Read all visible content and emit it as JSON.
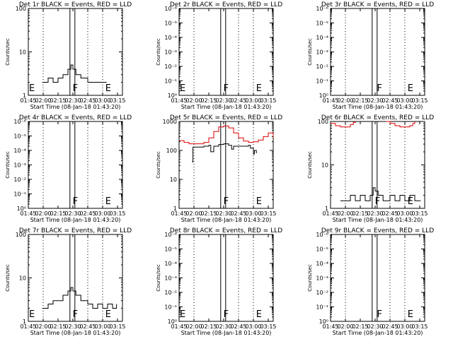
{
  "chart_data": [
    {
      "type": "line",
      "title": "Det 1r BLACK = Events, RED = LLD",
      "xlabel": "Start Time (08-Jan-18 01:43:20)",
      "ylabel": "Counts/sec",
      "yscale": "log",
      "ylim": [
        1,
        100
      ],
      "ytick_labels": [
        "1",
        "10",
        "100"
      ],
      "xlim": [
        "01:45",
        "03:20"
      ],
      "xtick_labels": [
        "01:45",
        "02:00",
        "02:15",
        "02:30",
        "02:45",
        "03:00",
        "03:15"
      ],
      "markers": [
        {
          "label": "E",
          "x": "01:45"
        },
        {
          "label": "F",
          "x": "02:29"
        },
        {
          "label": "E",
          "x": "03:02"
        }
      ],
      "vertical_lines_solid": [
        "02:27",
        "02:32"
      ],
      "vertical_lines_dotted": [
        "02:00",
        "02:45",
        "03:00"
      ],
      "series": [
        {
          "color": "#000000",
          "x": [
            "01:59",
            "02:05",
            "02:10",
            "02:15",
            "02:20",
            "02:25",
            "02:28",
            "02:30",
            "02:33",
            "02:38",
            "02:45",
            "02:55",
            "03:00",
            "03:04"
          ],
          "values": [
            2,
            2.5,
            2,
            2.5,
            3,
            4,
            5,
            4,
            3,
            2.5,
            2,
            2,
            2,
            2
          ]
        }
      ]
    },
    {
      "type": "line",
      "title": "Det 2r BLACK = Events, RED = LLD",
      "xlabel": "Start Time (08-Jan-18 01:43:20)",
      "ylabel": "Counts/sec",
      "yscale": "log",
      "ylim": [
        1,
        1000000
      ],
      "ytick_labels": [
        "10⁰",
        "10⁻¹",
        "10⁻²",
        "10⁻³",
        "10⁻⁴",
        "10⁻⁵",
        "10⁻⁶"
      ],
      "xlim": [
        "01:45",
        "03:20"
      ],
      "xtick_labels": [
        "01:45",
        "02:00",
        "02:15",
        "02:30",
        "02:45",
        "03:00",
        "03:15"
      ],
      "markers": [
        {
          "label": "E",
          "x": "01:45"
        },
        {
          "label": "F",
          "x": "02:29"
        },
        {
          "label": "E",
          "x": "03:02"
        }
      ],
      "vertical_lines_solid": [
        "02:27",
        "02:32"
      ],
      "vertical_lines_dotted": [
        "02:00",
        "02:45",
        "03:00"
      ],
      "series": []
    },
    {
      "type": "line",
      "title": "Det 3r BLACK = Events, RED = LLD",
      "xlabel": "Start Time (08-Jan-18 01:43:20)",
      "ylabel": "Counts/sec",
      "yscale": "log",
      "ylim": [
        1,
        1000000
      ],
      "ytick_labels": [
        "10⁰",
        "10⁻¹",
        "10⁻²",
        "10⁻³",
        "10⁻⁴",
        "10⁻⁵",
        "10⁻⁶"
      ],
      "xlim": [
        "01:45",
        "03:20"
      ],
      "xtick_labels": [
        "01:45",
        "02:00",
        "02:15",
        "02:30",
        "02:45",
        "03:00",
        "03:15"
      ],
      "markers": [
        {
          "label": "F",
          "x": "02:31"
        },
        {
          "label": "E",
          "x": "03:02"
        }
      ],
      "vertical_lines_solid": [
        "02:27",
        "02:32"
      ],
      "vertical_lines_dotted": [
        "02:00",
        "02:45",
        "03:00"
      ],
      "series": []
    },
    {
      "type": "line",
      "title": "Det 4r BLACK = Events, RED = LLD",
      "xlabel": "Start Time (08-Jan-18 01:43:20)",
      "ylabel": "Counts/sec",
      "yscale": "log",
      "ylim": [
        1,
        1000000
      ],
      "ytick_labels": [
        "10⁰",
        "10⁻¹",
        "10⁻²",
        "10⁻³",
        "10⁻⁴",
        "10⁻⁵",
        "10⁻⁶"
      ],
      "xlim": [
        "01:45",
        "03:20"
      ],
      "xtick_labels": [
        "01:45",
        "02:00",
        "02:15",
        "02:30",
        "02:45",
        "03:00",
        "03:15"
      ],
      "markers": [
        {
          "label": "F",
          "x": "02:29"
        },
        {
          "label": "E",
          "x": "03:02"
        }
      ],
      "vertical_lines_solid": [
        "02:27",
        "02:32"
      ],
      "vertical_lines_dotted": [
        "02:00",
        "02:45",
        "03:00"
      ],
      "series": []
    },
    {
      "type": "line",
      "title": "Det 5r BLACK = Events, RED = LLD",
      "xlabel": "Start Time (08-Jan-18 01:43:20)",
      "ylabel": "Counts/sec",
      "yscale": "log",
      "ylim": [
        1,
        1000
      ],
      "ytick_labels": [
        "1",
        "10",
        "100",
        "1000"
      ],
      "xlim": [
        "01:45",
        "03:20"
      ],
      "xtick_labels": [
        "01:45",
        "02:00",
        "02:15",
        "02:30",
        "02:45",
        "03:00",
        "03:15"
      ],
      "markers": [
        {
          "label": "F",
          "x": "02:29"
        },
        {
          "label": "E",
          "x": "03:02"
        }
      ],
      "vertical_lines_solid": [
        "02:27",
        "02:32"
      ],
      "vertical_lines_dotted": [
        "02:00",
        "02:45",
        "03:00"
      ],
      "series": [
        {
          "color": "#000000",
          "x": [
            "01:58",
            "01:59",
            "02:05",
            "02:10",
            "02:15",
            "02:17",
            "02:20",
            "02:25",
            "02:30",
            "02:35",
            "02:38",
            "02:40",
            "02:45",
            "02:50",
            "02:55",
            "02:57",
            "03:00",
            "03:01",
            "03:03"
          ],
          "values": [
            40,
            130,
            130,
            140,
            150,
            90,
            140,
            160,
            170,
            150,
            110,
            140,
            140,
            140,
            150,
            120,
            75,
            100,
            80
          ]
        },
        {
          "color": "#dd0000",
          "x": [
            "01:45",
            "01:50",
            "01:55",
            "02:00",
            "02:05",
            "02:10",
            "02:15",
            "02:20",
            "02:25",
            "02:30",
            "02:35",
            "02:40",
            "02:45",
            "02:50",
            "02:55",
            "03:00",
            "03:05",
            "03:10",
            "03:15",
            "03:20"
          ],
          "values": [
            220,
            190,
            170,
            170,
            170,
            190,
            270,
            450,
            650,
            700,
            600,
            400,
            270,
            210,
            190,
            200,
            230,
            300,
            400,
            280
          ]
        }
      ]
    },
    {
      "type": "line",
      "title": "Det 6r BLACK = Events, RED = LLD",
      "xlabel": "Start Time (08-Jan-18 01:43:20)",
      "ylabel": "Counts/sec",
      "yscale": "log",
      "ylim": [
        1,
        100
      ],
      "ytick_labels": [
        "1",
        "10",
        "100"
      ],
      "xlim": [
        "01:45",
        "03:20"
      ],
      "xtick_labels": [
        "01:45",
        "02:00",
        "02:15",
        "02:30",
        "02:45",
        "03:00",
        "03:15"
      ],
      "markers": [
        {
          "label": "F",
          "x": "02:29"
        },
        {
          "label": "E",
          "x": "03:02"
        }
      ],
      "vertical_lines_solid": [
        "02:27",
        "02:32"
      ],
      "vertical_lines_dotted": [
        "02:00",
        "02:45",
        "03:00"
      ],
      "series": [
        {
          "color": "#000000",
          "x": [
            "01:55",
            "02:00",
            "02:05",
            "02:10",
            "02:15",
            "02:20",
            "02:25",
            "02:28",
            "02:30",
            "02:33",
            "02:38",
            "02:45",
            "02:50",
            "02:55",
            "03:00",
            "03:05",
            "03:10",
            "03:16"
          ],
          "values": [
            1.5,
            1.5,
            2,
            1.5,
            2,
            1.5,
            2,
            3,
            2.5,
            2,
            1.5,
            2,
            1.5,
            2,
            1.5,
            2,
            1.5,
            1.5
          ]
        },
        {
          "color": "#dd0000",
          "x": [
            "01:45",
            "01:50",
            "01:55",
            "02:00",
            "02:05",
            "02:08",
            "02:10"
          ],
          "values": [
            90,
            80,
            75,
            75,
            85,
            95,
            100
          ]
        },
        {
          "color": "#dd0000",
          "x": [
            "02:41",
            "02:45",
            "02:50",
            "02:55",
            "03:00",
            "03:05",
            "03:08",
            "03:10"
          ],
          "values": [
            100,
            90,
            80,
            75,
            75,
            80,
            90,
            100
          ]
        }
      ]
    },
    {
      "type": "line",
      "title": "Det 7r BLACK = Events, RED = LLD",
      "xlabel": "Start Time (08-Jan-18 01:43:20)",
      "ylabel": "Counts/sec",
      "yscale": "log",
      "ylim": [
        1,
        100
      ],
      "ytick_labels": [
        "1",
        "10",
        "100"
      ],
      "xlim": [
        "01:45",
        "03:20"
      ],
      "xtick_labels": [
        "01:45",
        "02:00",
        "02:15",
        "02:30",
        "02:45",
        "03:00",
        "03:15"
      ],
      "markers": [
        {
          "label": "E",
          "x": "01:45"
        },
        {
          "label": "F",
          "x": "02:29"
        },
        {
          "label": "E",
          "x": "03:02"
        }
      ],
      "vertical_lines_solid": [
        "02:27",
        "02:32"
      ],
      "vertical_lines_dotted": [
        "02:00",
        "02:45",
        "03:00"
      ],
      "series": [
        {
          "color": "#000000",
          "x": [
            "01:59",
            "02:05",
            "02:10",
            "02:15",
            "02:20",
            "02:25",
            "02:28",
            "02:30",
            "02:33",
            "02:38",
            "02:45",
            "02:50",
            "02:55",
            "03:00",
            "03:05",
            "03:10",
            "03:14"
          ],
          "values": [
            2,
            2.5,
            3,
            3,
            4,
            5,
            6,
            5,
            4,
            3,
            2.5,
            2,
            2.5,
            2,
            2.5,
            2,
            2.5
          ]
        }
      ]
    },
    {
      "type": "line",
      "title": "Det 8r BLACK = Events, RED = LLD",
      "xlabel": "Start Time (08-Jan-18 01:43:20)",
      "ylabel": "Counts/sec",
      "yscale": "log",
      "ylim": [
        1,
        1000000
      ],
      "ytick_labels": [
        "10⁰",
        "10⁻¹",
        "10⁻²",
        "10⁻³",
        "10⁻⁴",
        "10⁻⁵",
        "10⁻⁶"
      ],
      "xlim": [
        "01:45",
        "03:20"
      ],
      "xtick_labels": [
        "01:45",
        "02:00",
        "02:15",
        "02:30",
        "02:45",
        "03:00",
        "03:15"
      ],
      "markers": [
        {
          "label": "E",
          "x": "01:45"
        },
        {
          "label": "F",
          "x": "02:29"
        },
        {
          "label": "E",
          "x": "03:02"
        }
      ],
      "vertical_lines_solid": [
        "02:27",
        "02:32"
      ],
      "vertical_lines_dotted": [
        "02:00",
        "02:45",
        "03:00"
      ],
      "series": []
    },
    {
      "type": "line",
      "title": "Det 9r BLACK = Events, RED = LLD",
      "xlabel": "Start Time (08-Jan-18 01:43:20)",
      "ylabel": "Counts/sec",
      "yscale": "log",
      "ylim": [
        1,
        1000000
      ],
      "ytick_labels": [
        "10⁰",
        "10⁻¹",
        "10⁻²",
        "10⁻³",
        "10⁻⁴",
        "10⁻⁵",
        "10⁻⁶"
      ],
      "xlim": [
        "01:45",
        "03:20"
      ],
      "xtick_labels": [
        "01:45",
        "02:00",
        "02:15",
        "02:30",
        "02:45",
        "03:00",
        "03:15"
      ],
      "markers": [
        {
          "label": "F",
          "x": "02:31"
        },
        {
          "label": "E",
          "x": "03:02"
        }
      ],
      "vertical_lines_solid": [
        "02:27",
        "02:32"
      ],
      "vertical_lines_dotted": [
        "02:00",
        "02:45",
        "03:00"
      ],
      "series": []
    }
  ]
}
